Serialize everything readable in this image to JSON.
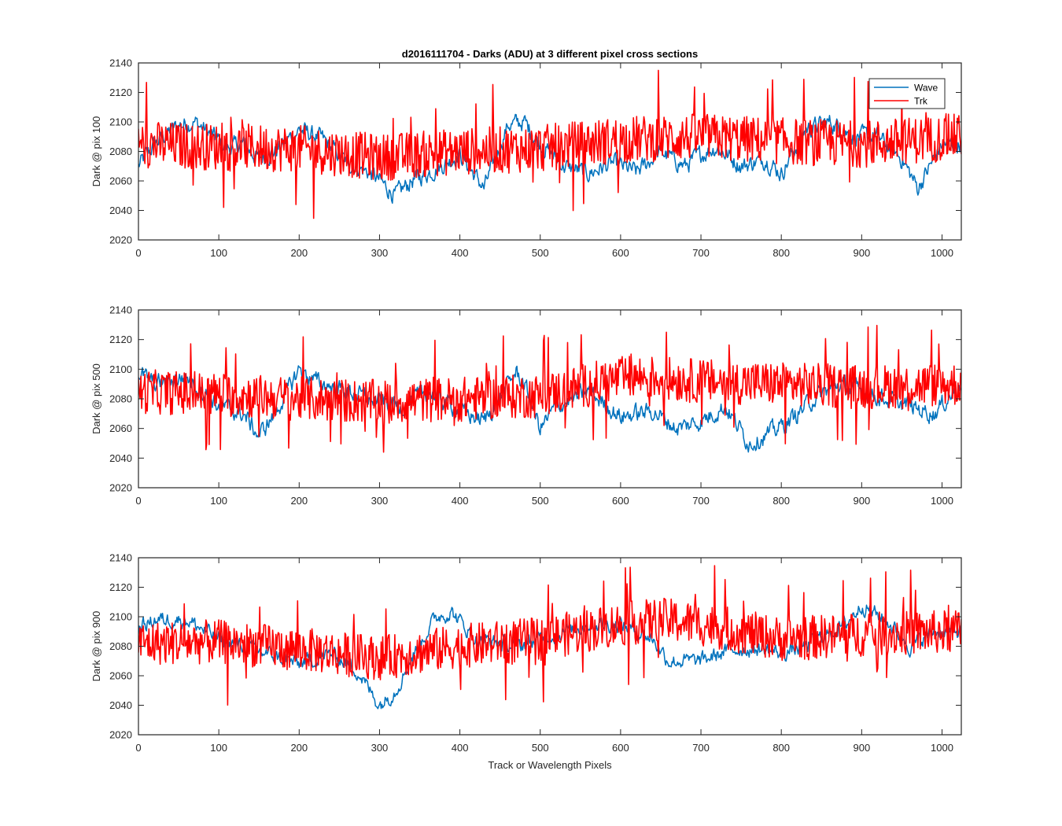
{
  "figure_title": "d2016111704 - Darks (ADU) at 3 different pixel cross sections",
  "xlabel": "Track or Wavelength Pixels",
  "legend": {
    "placement": "top-right of first panel",
    "entries": [
      {
        "name": "Wave",
        "color": "#0072BD"
      },
      {
        "name": "Trk",
        "color": "#FF0000"
      }
    ]
  },
  "chart_data": [
    {
      "type": "line",
      "title": "d2016111704 - Darks (ADU) at 3 different pixel cross sections",
      "xlabel": "",
      "ylabel": "Dark @ pix 100",
      "xlim": [
        0,
        1024
      ],
      "ylim": [
        2020,
        2140
      ],
      "xticks": [
        "0",
        "100",
        "200",
        "300",
        "400",
        "500",
        "600",
        "700",
        "800",
        "900",
        "1000"
      ],
      "yticks": [
        "2020",
        "2040",
        "2060",
        "2080",
        "2100",
        "2120",
        "2140"
      ],
      "series": [
        {
          "name": "Wave",
          "color": "#0072BD",
          "noise": 7,
          "x": [
            0,
            20,
            50,
            70,
            90,
            110,
            130,
            150,
            170,
            200,
            230,
            260,
            290,
            320,
            340,
            370,
            400,
            430,
            460,
            480,
            500,
            530,
            560,
            590,
            620,
            650,
            680,
            700,
            720,
            750,
            780,
            800,
            830,
            860,
            890,
            920,
            950,
            970,
            1000,
            1024
          ],
          "values": [
            2070,
            2085,
            2098,
            2100,
            2092,
            2082,
            2085,
            2075,
            2080,
            2095,
            2088,
            2072,
            2065,
            2050,
            2060,
            2068,
            2078,
            2055,
            2098,
            2100,
            2085,
            2070,
            2065,
            2072,
            2066,
            2080,
            2070,
            2078,
            2083,
            2070,
            2075,
            2065,
            2095,
            2100,
            2090,
            2090,
            2075,
            2055,
            2085,
            2085
          ]
        },
        {
          "name": "Trk",
          "color": "#FF0000",
          "noise": 16,
          "x": [
            0,
            100,
            200,
            300,
            400,
            500,
            600,
            700,
            800,
            900,
            1024
          ],
          "values": [
            2085,
            2083,
            2082,
            2076,
            2080,
            2082,
            2088,
            2090,
            2087,
            2085,
            2090
          ]
        }
      ]
    },
    {
      "type": "line",
      "title": "",
      "xlabel": "",
      "ylabel": "Dark @ pix 500",
      "xlim": [
        0,
        1024
      ],
      "ylim": [
        2020,
        2140
      ],
      "xticks": [
        "0",
        "100",
        "200",
        "300",
        "400",
        "500",
        "600",
        "700",
        "800",
        "900",
        "1000"
      ],
      "yticks": [
        "2020",
        "2040",
        "2060",
        "2080",
        "2100",
        "2120",
        "2140"
      ],
      "series": [
        {
          "name": "Wave",
          "color": "#0072BD",
          "noise": 7,
          "x": [
            0,
            20,
            60,
            100,
            130,
            150,
            170,
            200,
            220,
            260,
            300,
            330,
            360,
            400,
            430,
            470,
            480,
            500,
            520,
            560,
            600,
            640,
            670,
            700,
            730,
            760,
            780,
            810,
            840,
            870,
            900,
            930,
            960,
            990,
            1024
          ],
          "values": [
            2098,
            2090,
            2095,
            2075,
            2070,
            2055,
            2070,
            2100,
            2092,
            2085,
            2078,
            2075,
            2085,
            2072,
            2065,
            2098,
            2090,
            2060,
            2075,
            2085,
            2068,
            2072,
            2060,
            2065,
            2075,
            2050,
            2055,
            2065,
            2080,
            2090,
            2085,
            2080,
            2075,
            2070,
            2090
          ]
        },
        {
          "name": "Trk",
          "color": "#FF0000",
          "noise": 15,
          "x": [
            0,
            100,
            200,
            300,
            400,
            500,
            580,
            620,
            700,
            800,
            900,
            1024
          ],
          "values": [
            2085,
            2083,
            2080,
            2078,
            2080,
            2082,
            2092,
            2095,
            2092,
            2090,
            2088,
            2090
          ]
        }
      ]
    },
    {
      "type": "line",
      "title": "",
      "xlabel": "Track or Wavelength Pixels",
      "ylabel": "Dark @ pix 900",
      "xlim": [
        0,
        1024
      ],
      "ylim": [
        2020,
        2140
      ],
      "xticks": [
        "0",
        "100",
        "200",
        "300",
        "400",
        "500",
        "600",
        "700",
        "800",
        "900",
        "1000"
      ],
      "yticks": [
        "2020",
        "2040",
        "2060",
        "2080",
        "2100",
        "2120",
        "2140"
      ],
      "series": [
        {
          "name": "Wave",
          "color": "#0072BD",
          "noise": 6,
          "x": [
            0,
            20,
            60,
            100,
            130,
            160,
            200,
            240,
            270,
            300,
            320,
            340,
            370,
            390,
            420,
            470,
            520,
            560,
            600,
            640,
            660,
            700,
            740,
            780,
            800,
            830,
            880,
            900,
            930,
            960,
            990,
            1024
          ],
          "values": [
            2092,
            2098,
            2098,
            2085,
            2080,
            2075,
            2068,
            2075,
            2065,
            2040,
            2050,
            2072,
            2100,
            2103,
            2085,
            2080,
            2088,
            2095,
            2095,
            2085,
            2070,
            2070,
            2078,
            2078,
            2075,
            2080,
            2095,
            2108,
            2098,
            2080,
            2090,
            2090
          ]
        },
        {
          "name": "Trk",
          "color": "#FF0000",
          "noise": 15,
          "x": [
            0,
            100,
            200,
            300,
            400,
            500,
            600,
            650,
            700,
            800,
            900,
            1024
          ],
          "values": [
            2082,
            2083,
            2078,
            2072,
            2080,
            2085,
            2095,
            2098,
            2095,
            2085,
            2088,
            2090
          ]
        }
      ]
    }
  ]
}
